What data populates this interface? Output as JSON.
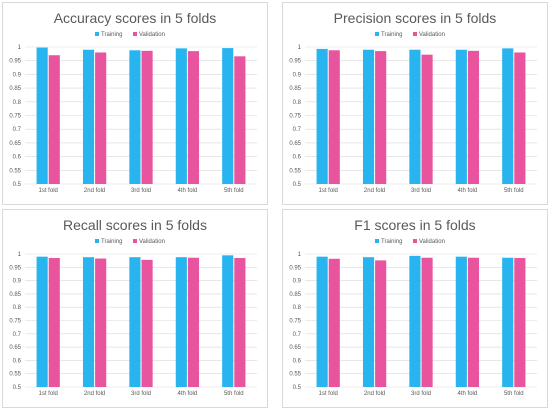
{
  "colors": {
    "training": "#28b4ee",
    "validation": "#e8559e",
    "grid": "#d9d9d9",
    "text": "#595959",
    "border": "#d9d9d9"
  },
  "chart_data": [
    {
      "type": "bar",
      "title": "Accuracy scores in 5 folds",
      "categories": [
        "1st fold",
        "2nd fold",
        "3rd fold",
        "4th fold",
        "5th fold"
      ],
      "ylim": [
        0.5,
        1
      ],
      "yticks": [
        "0.5",
        "0.55",
        "0.6",
        "0.65",
        "0.7",
        "0.75",
        "0.8",
        "0.85",
        "0.9",
        "0.95",
        "1"
      ],
      "grid": true,
      "legend_position": "top",
      "series": [
        {
          "name": "Training",
          "values": [
            0.998,
            0.99,
            0.988,
            0.995,
            0.996
          ]
        },
        {
          "name": "Validation",
          "values": [
            0.97,
            0.98,
            0.986,
            0.985,
            0.966
          ]
        }
      ]
    },
    {
      "type": "bar",
      "title": "Precision scores in 5 folds",
      "categories": [
        "1st fold",
        "2nd fold",
        "3rd fold",
        "4th fold",
        "5th fold"
      ],
      "ylim": [
        0.5,
        1
      ],
      "yticks": [
        "0.5",
        "0.55",
        "0.6",
        "0.65",
        "0.7",
        "0.75",
        "0.8",
        "0.85",
        "0.9",
        "0.95",
        "1"
      ],
      "grid": true,
      "legend_position": "top",
      "series": [
        {
          "name": "Training",
          "values": [
            0.993,
            0.99,
            0.99,
            0.99,
            0.995
          ]
        },
        {
          "name": "Validation",
          "values": [
            0.988,
            0.985,
            0.972,
            0.986,
            0.98
          ]
        }
      ]
    },
    {
      "type": "bar",
      "title": "Recall scores in 5 folds",
      "categories": [
        "1st fold",
        "2nd fold",
        "3rd fold",
        "4th fold",
        "5th fold"
      ],
      "ylim": [
        0.5,
        1
      ],
      "yticks": [
        "0.5",
        "0.55",
        "0.6",
        "0.65",
        "0.7",
        "0.75",
        "0.8",
        "0.85",
        "0.9",
        "0.95",
        "1"
      ],
      "grid": true,
      "legend_position": "top",
      "series": [
        {
          "name": "Training",
          "values": [
            0.99,
            0.988,
            0.988,
            0.988,
            0.995
          ]
        },
        {
          "name": "Validation",
          "values": [
            0.985,
            0.983,
            0.978,
            0.986,
            0.985
          ]
        }
      ]
    },
    {
      "type": "bar",
      "title": "F1 scores in 5 folds",
      "categories": [
        "1st fold",
        "2nd fold",
        "3rd fold",
        "4th fold",
        "5th fold"
      ],
      "ylim": [
        0.5,
        1
      ],
      "yticks": [
        "0.5",
        "0.55",
        "0.6",
        "0.65",
        "0.7",
        "0.75",
        "0.8",
        "0.85",
        "0.9",
        "0.95",
        "1"
      ],
      "grid": true,
      "legend_position": "top",
      "series": [
        {
          "name": "Training",
          "values": [
            0.99,
            0.988,
            0.993,
            0.99,
            0.986
          ]
        },
        {
          "name": "Validation",
          "values": [
            0.982,
            0.976,
            0.986,
            0.986,
            0.985
          ]
        }
      ]
    }
  ]
}
